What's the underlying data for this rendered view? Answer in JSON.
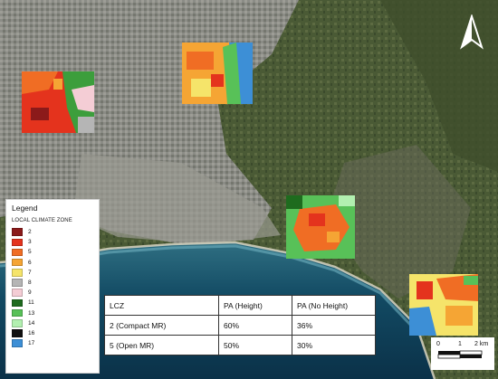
{
  "legend": {
    "title": "Legend",
    "subtitle": "LOCAL CLIMATE ZONE",
    "items": [
      {
        "label": "2",
        "color": "#8b1a1a"
      },
      {
        "label": "3",
        "color": "#e4331d"
      },
      {
        "label": "5",
        "color": "#f06d24"
      },
      {
        "label": "6",
        "color": "#f5a534"
      },
      {
        "label": "7",
        "color": "#f5e46a"
      },
      {
        "label": "8",
        "color": "#b5b5b5"
      },
      {
        "label": "9",
        "color": "#f4cdd5"
      },
      {
        "label": "11",
        "color": "#1e6b1e"
      },
      {
        "label": "13",
        "color": "#58c158"
      },
      {
        "label": "14",
        "color": "#b2f0b0"
      },
      {
        "label": "16",
        "color": "#111111"
      },
      {
        "label": "17",
        "color": "#3d8fd6"
      }
    ]
  },
  "table": {
    "headers": [
      "LCZ",
      "PA (Height)",
      "PA (No Height)"
    ],
    "rows": [
      [
        "2 (Compact MR)",
        "60%",
        "36%"
      ],
      [
        "5 (Open MR)",
        "50%",
        "30%"
      ]
    ]
  },
  "scale": {
    "labels": [
      "0",
      "1",
      "2 km"
    ]
  },
  "north_arrow": {
    "icon": "north-arrow-icon"
  }
}
